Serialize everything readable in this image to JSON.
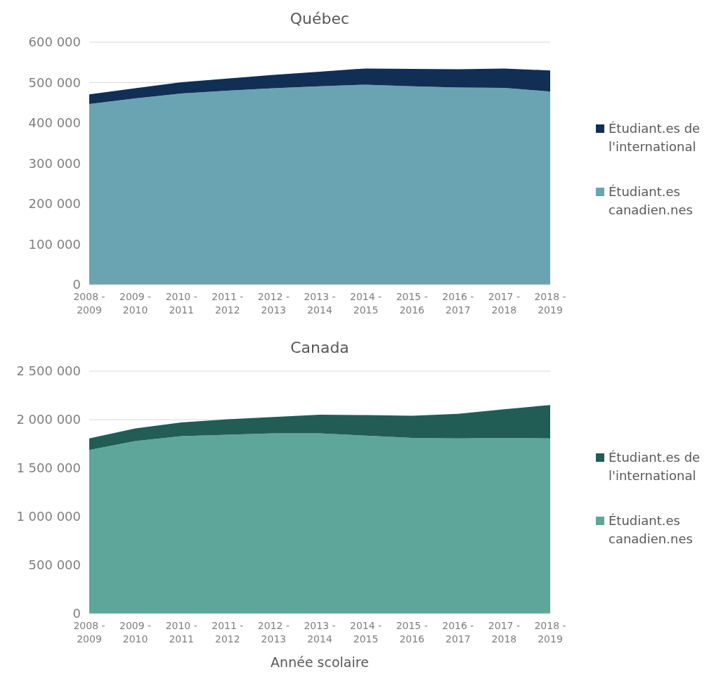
{
  "chart_data": [
    {
      "type": "area",
      "title": "Québec",
      "stacked": true,
      "legend": "right",
      "grid": "y",
      "categories": [
        "2008 - 2009",
        "2009 - 2010",
        "2010 - 2011",
        "2011 - 2012",
        "2012 - 2013",
        "2013 - 2014",
        "2014 - 2015",
        "2015 - 2016",
        "2016 - 2017",
        "2017 - 2018",
        "2018 - 2019"
      ],
      "ylim": [
        0,
        600000
      ],
      "yticks": [
        {
          "value": 0,
          "label": "0"
        },
        {
          "value": 100000,
          "label": "100 000"
        },
        {
          "value": 200000,
          "label": "200 000"
        },
        {
          "value": 300000,
          "label": "300 000"
        },
        {
          "value": 400000,
          "label": "400 000"
        },
        {
          "value": 500000,
          "label": "500 000"
        },
        {
          "value": 600000,
          "label": "600 000"
        }
      ],
      "series": [
        {
          "name": "Étudiant.es canadien.nes",
          "color": "#6aa4b3",
          "values": [
            447000,
            461000,
            473000,
            480000,
            486000,
            491000,
            495000,
            491000,
            488000,
            487000,
            478000
          ]
        },
        {
          "name": "Étudiant.es de l'international",
          "color": "#112f55",
          "values": [
            24000,
            25000,
            28000,
            30000,
            33000,
            36000,
            40000,
            43000,
            45000,
            48000,
            52000
          ]
        }
      ]
    },
    {
      "type": "area",
      "title": "Canada",
      "xlabel": "Année scolaire",
      "stacked": true,
      "legend": "right",
      "grid": "y",
      "categories": [
        "2008 - 2009",
        "2009 - 2010",
        "2010 - 2011",
        "2011 - 2012",
        "2012 - 2013",
        "2013 - 2014",
        "2014 - 2015",
        "2015 - 2016",
        "2016 - 2017",
        "2017 - 2018",
        "2018 - 2019"
      ],
      "ylim": [
        0,
        2500000
      ],
      "yticks": [
        {
          "value": 0,
          "label": "0"
        },
        {
          "value": 500000,
          "label": "500 000"
        },
        {
          "value": 1000000,
          "label": "1 000 000"
        },
        {
          "value": 1500000,
          "label": "1 500 000"
        },
        {
          "value": 2000000,
          "label": "2 000 000"
        },
        {
          "value": 2500000,
          "label": "2 500 000"
        }
      ],
      "series": [
        {
          "name": "Étudiant.es canadien.nes",
          "color": "#5ea699",
          "values": [
            1687000,
            1779000,
            1829000,
            1845000,
            1859000,
            1859000,
            1835000,
            1812000,
            1806000,
            1812000,
            1806000
          ]
        },
        {
          "name": "Étudiant.es de l'international",
          "color": "#215d55",
          "values": [
            119000,
            130000,
            142000,
            159000,
            168000,
            192000,
            212000,
            228000,
            254000,
            295000,
            345000
          ]
        }
      ]
    }
  ]
}
